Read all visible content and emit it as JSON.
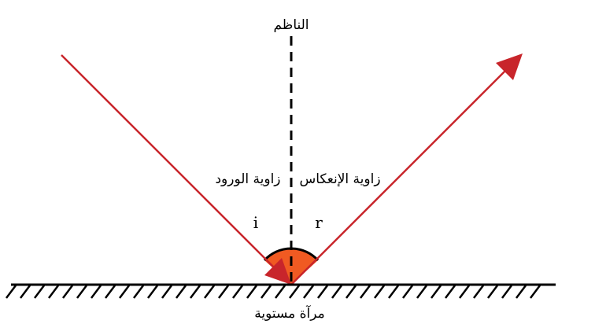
{
  "labels": {
    "normal": "الناظم",
    "incidence_angle": "زاوية الورود",
    "reflection_angle": "زاوية الإنعكاس",
    "incidence_symbol": "i",
    "reflection_symbol": "r",
    "mirror": "مرآة مستوية"
  },
  "colors": {
    "ray": "#c8252b",
    "angle_fill": "#f05a22",
    "line": "#000000"
  }
}
